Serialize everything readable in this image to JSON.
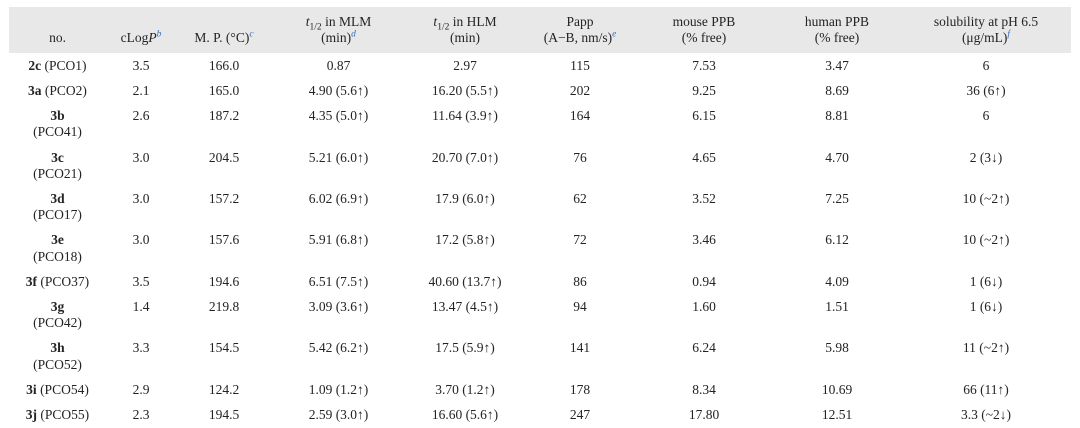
{
  "colors": {
    "header_bg": "#e8e8e8",
    "text": "#232323",
    "superscript_blue": "#3c6cb4"
  },
  "table": {
    "header": {
      "no": {
        "label": "no."
      },
      "clogp": {
        "prefix": "cLog",
        "italic": "P",
        "sup": "b"
      },
      "mp": {
        "label": "M. P. (°C)",
        "sup": "c"
      },
      "mlm": {
        "t": "t",
        "sub": "1/2",
        "rest": " in MLM",
        "line2": "(min)",
        "sup": "d"
      },
      "hlm": {
        "t": "t",
        "sub": "1/2",
        "rest": " in HLM",
        "line2": "(min)"
      },
      "papp": {
        "line1": "Papp",
        "line2": "(A−B, nm/s)",
        "sup": "e"
      },
      "mouse_ppb": {
        "line1": "mouse PPB",
        "line2": "(% free)"
      },
      "human_ppb": {
        "line1": "human PPB",
        "line2": "(% free)"
      },
      "solubility": {
        "line1": "solubility at pH 6.5",
        "line2": "(μg/mL)",
        "sup": "f"
      }
    },
    "rows": [
      {
        "id": "2c",
        "pco": "(PCO1)",
        "wrap": false,
        "clogp": "3.5",
        "mp": "166.0",
        "mlm": "0.87",
        "hlm": "2.97",
        "papp": "115",
        "mouse_ppb": "7.53",
        "human_ppb": "3.47",
        "solubility": "6"
      },
      {
        "id": "3a",
        "pco": "(PCO2)",
        "wrap": false,
        "clogp": "2.1",
        "mp": "165.0",
        "mlm": "4.90 (5.6↑)",
        "hlm": "16.20 (5.5↑)",
        "papp": "202",
        "mouse_ppb": "9.25",
        "human_ppb": "8.69",
        "solubility": "36 (6↑)"
      },
      {
        "id": "3b",
        "pco": "(PCO41)",
        "wrap": true,
        "clogp": "2.6",
        "mp": "187.2",
        "mlm": "4.35 (5.0↑)",
        "hlm": "11.64 (3.9↑)",
        "papp": "164",
        "mouse_ppb": "6.15",
        "human_ppb": "8.81",
        "solubility": "6"
      },
      {
        "id": "3c",
        "pco": "(PCO21)",
        "wrap": true,
        "clogp": "3.0",
        "mp": "204.5",
        "mlm": "5.21 (6.0↑)",
        "hlm": "20.70 (7.0↑)",
        "papp": "76",
        "mouse_ppb": "4.65",
        "human_ppb": "4.70",
        "solubility": "2 (3↓)"
      },
      {
        "id": "3d",
        "pco": "(PCO17)",
        "wrap": true,
        "clogp": "3.0",
        "mp": "157.2",
        "mlm": "6.02 (6.9↑)",
        "hlm": "17.9 (6.0↑)",
        "papp": "62",
        "mouse_ppb": "3.52",
        "human_ppb": "7.25",
        "solubility": "10 (~2↑)"
      },
      {
        "id": "3e",
        "pco": "(PCO18)",
        "wrap": true,
        "clogp": "3.0",
        "mp": "157.6",
        "mlm": "5.91 (6.8↑)",
        "hlm": "17.2 (5.8↑)",
        "papp": "72",
        "mouse_ppb": "3.46",
        "human_ppb": "6.12",
        "solubility": "10 (~2↑)"
      },
      {
        "id": "3f",
        "pco": "(PCO37)",
        "wrap": false,
        "clogp": "3.5",
        "mp": "194.6",
        "mlm": "6.51 (7.5↑)",
        "hlm": "40.60 (13.7↑)",
        "papp": "86",
        "mouse_ppb": "0.94",
        "human_ppb": "4.09",
        "solubility": "1 (6↓)"
      },
      {
        "id": "3g",
        "pco": "(PCO42)",
        "wrap": true,
        "clogp": "1.4",
        "mp": "219.8",
        "mlm": "3.09 (3.6↑)",
        "hlm": "13.47 (4.5↑)",
        "papp": "94",
        "mouse_ppb": "1.60",
        "human_ppb": "1.51",
        "solubility": "1 (6↓)"
      },
      {
        "id": "3h",
        "pco": "(PCO52)",
        "wrap": true,
        "clogp": "3.3",
        "mp": "154.5",
        "mlm": "5.42 (6.2↑)",
        "hlm": "17.5 (5.9↑)",
        "papp": "141",
        "mouse_ppb": "6.24",
        "human_ppb": "5.98",
        "solubility": "11 (~2↑)"
      },
      {
        "id": "3i",
        "pco": "(PCO54)",
        "wrap": false,
        "clogp": "2.9",
        "mp": "124.2",
        "mlm": "1.09 (1.2↑)",
        "hlm": "3.70 (1.2↑)",
        "papp": "178",
        "mouse_ppb": "8.34",
        "human_ppb": "10.69",
        "solubility": "66 (11↑)"
      },
      {
        "id": "3j",
        "pco": "(PCO55)",
        "wrap": false,
        "clogp": "2.3",
        "mp": "194.5",
        "mlm": "2.59 (3.0↑)",
        "hlm": "16.60 (5.6↑)",
        "papp": "247",
        "mouse_ppb": "17.80",
        "human_ppb": "12.51",
        "solubility": "3.3 (~2↓)"
      }
    ]
  }
}
